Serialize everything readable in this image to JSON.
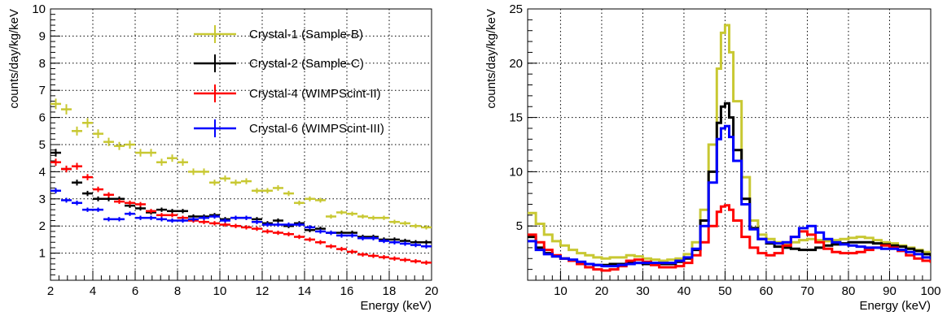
{
  "chart_data": [
    {
      "type": "scatter",
      "xlabel": "Energy (keV)",
      "ylabel": "counts/day/kg/keV",
      "xlim": [
        2,
        20
      ],
      "ylim": [
        0,
        10
      ],
      "xticks": [
        2,
        4,
        6,
        8,
        10,
        12,
        14,
        16,
        18,
        20
      ],
      "yticks": [
        1,
        2,
        3,
        4,
        5,
        6,
        7,
        8,
        9,
        10
      ],
      "grid": true,
      "legend_position": "top-right",
      "bin_width": 0.5,
      "series": [
        {
          "name": "Crystal-1 (Sample-B)",
          "color": "#c8c832",
          "x": [
            2.25,
            2.75,
            3.25,
            3.75,
            4.25,
            4.75,
            5.25,
            5.75,
            6.25,
            6.75,
            7.25,
            7.75,
            8.25,
            8.75,
            9.25,
            9.75,
            10.25,
            10.75,
            11.25,
            11.75,
            12.25,
            12.75,
            13.25,
            13.75,
            14.25,
            14.75,
            15.25,
            15.75,
            16.25,
            16.75,
            17.25,
            17.75,
            18.25,
            18.75,
            19.25,
            19.75
          ],
          "y": [
            6.5,
            6.3,
            5.5,
            5.8,
            5.4,
            5.1,
            4.95,
            5.0,
            4.7,
            4.7,
            4.35,
            4.5,
            4.35,
            4.0,
            4.0,
            3.6,
            3.75,
            3.6,
            3.65,
            3.3,
            3.3,
            3.4,
            3.2,
            2.85,
            3.0,
            2.95,
            2.35,
            2.5,
            2.45,
            2.35,
            2.3,
            2.3,
            2.15,
            2.1,
            2.0,
            1.95
          ]
        },
        {
          "name": "Crystal-2 (Sample-C)",
          "color": "#000000",
          "x": [
            2.25,
            2.75,
            3.25,
            3.75,
            4.25,
            4.75,
            5.25,
            5.75,
            6.25,
            6.75,
            7.25,
            7.75,
            8.25,
            8.75,
            9.25,
            9.75,
            10.25,
            10.75,
            11.25,
            11.75,
            12.25,
            12.75,
            13.25,
            13.75,
            14.25,
            14.75,
            15.25,
            15.75,
            16.25,
            16.75,
            17.25,
            17.75,
            18.25,
            18.75,
            19.25,
            19.75
          ],
          "y": [
            4.7,
            4.1,
            3.6,
            3.2,
            3.0,
            3.0,
            3.0,
            2.75,
            2.65,
            2.5,
            2.6,
            2.55,
            2.55,
            2.35,
            2.35,
            2.4,
            2.25,
            2.3,
            2.3,
            2.25,
            2.1,
            2.2,
            2.0,
            2.1,
            1.85,
            1.9,
            1.75,
            1.75,
            1.75,
            1.6,
            1.6,
            1.5,
            1.5,
            1.45,
            1.4,
            1.4
          ]
        },
        {
          "name": "Crystal-4 (WIMPScint-II)",
          "color": "#ff0000",
          "x": [
            2.25,
            2.75,
            3.25,
            3.75,
            4.25,
            4.75,
            5.25,
            5.75,
            6.25,
            6.75,
            7.25,
            7.75,
            8.25,
            8.75,
            9.25,
            9.75,
            10.25,
            10.75,
            11.25,
            11.75,
            12.25,
            12.75,
            13.25,
            13.75,
            14.25,
            14.75,
            15.25,
            15.75,
            16.25,
            16.75,
            17.25,
            17.75,
            18.25,
            18.75,
            19.25,
            19.75
          ],
          "y": [
            4.35,
            4.1,
            4.2,
            3.8,
            3.35,
            3.15,
            2.9,
            2.85,
            2.8,
            2.55,
            2.4,
            2.4,
            2.3,
            2.2,
            2.15,
            2.1,
            2.05,
            2.0,
            1.95,
            1.9,
            1.8,
            1.75,
            1.7,
            1.6,
            1.5,
            1.4,
            1.25,
            1.15,
            1.05,
            0.95,
            0.9,
            0.85,
            0.8,
            0.75,
            0.7,
            0.65
          ]
        },
        {
          "name": "Crystal-6 (WIMPScint-III)",
          "color": "#0000ff",
          "x": [
            2.25,
            2.75,
            3.25,
            3.75,
            4.25,
            4.75,
            5.25,
            5.75,
            6.25,
            6.75,
            7.25,
            7.75,
            8.25,
            8.75,
            9.25,
            9.75,
            10.25,
            10.75,
            11.25,
            11.75,
            12.25,
            12.75,
            13.25,
            13.75,
            14.25,
            14.75,
            15.25,
            15.75,
            16.25,
            16.75,
            17.25,
            17.75,
            18.25,
            18.75,
            19.25,
            19.75
          ],
          "y": [
            3.3,
            2.95,
            2.85,
            2.6,
            2.6,
            2.25,
            2.25,
            2.45,
            2.3,
            2.3,
            2.25,
            2.2,
            2.2,
            2.25,
            2.3,
            2.35,
            2.2,
            2.3,
            2.3,
            2.15,
            2.05,
            2.05,
            2.05,
            2.05,
            1.95,
            1.8,
            1.75,
            1.65,
            1.65,
            1.55,
            1.55,
            1.45,
            1.4,
            1.35,
            1.3,
            1.25
          ]
        }
      ]
    },
    {
      "type": "line",
      "xlabel": "Energy (keV)",
      "ylabel": "counts/day/kg/keV",
      "xlim": [
        2,
        100
      ],
      "ylim": [
        0,
        25
      ],
      "xticks": [
        10,
        20,
        30,
        40,
        50,
        60,
        70,
        80,
        90,
        100
      ],
      "yticks": [
        5,
        10,
        15,
        20,
        25
      ],
      "grid": true,
      "step": true,
      "series": [
        {
          "color": "#c8c832",
          "x": [
            2,
            4,
            6,
            8,
            10,
            12,
            14,
            16,
            18,
            20,
            22,
            24,
            26,
            28,
            30,
            32,
            34,
            36,
            38,
            40,
            42,
            44,
            46,
            48,
            49,
            50,
            51,
            52,
            54,
            56,
            58,
            60,
            62,
            64,
            66,
            68,
            70,
            72,
            74,
            76,
            78,
            80,
            82,
            84,
            86,
            88,
            90,
            92,
            94,
            96,
            98,
            100
          ],
          "y": [
            6.2,
            5.2,
            4.2,
            3.6,
            3.2,
            2.8,
            2.5,
            2.3,
            2.1,
            2.0,
            2.1,
            2.1,
            2.3,
            2.2,
            2.0,
            1.9,
            1.8,
            1.9,
            2.0,
            2.4,
            3.5,
            6.5,
            12.5,
            19.5,
            22.8,
            23.5,
            21.0,
            16.5,
            9.5,
            5.5,
            4.2,
            3.8,
            3.5,
            3.4,
            3.5,
            3.7,
            3.8,
            3.7,
            3.6,
            3.7,
            3.8,
            3.9,
            4.0,
            3.9,
            3.7,
            3.5,
            3.4,
            3.2,
            3.0,
            2.8,
            2.6,
            2.4
          ]
        },
        {
          "color": "#000000",
          "x": [
            2,
            4,
            6,
            8,
            10,
            12,
            14,
            16,
            18,
            20,
            22,
            24,
            26,
            28,
            30,
            32,
            34,
            36,
            38,
            40,
            42,
            44,
            46,
            48,
            49,
            50,
            51,
            52,
            54,
            56,
            58,
            60,
            62,
            64,
            66,
            68,
            70,
            72,
            74,
            76,
            78,
            80,
            82,
            84,
            86,
            88,
            90,
            92,
            94,
            96,
            98,
            100
          ],
          "y": [
            4.0,
            3.0,
            2.5,
            2.2,
            2.0,
            1.8,
            1.6,
            1.5,
            1.4,
            1.4,
            1.5,
            1.5,
            1.6,
            1.6,
            1.5,
            1.5,
            1.5,
            1.5,
            1.7,
            2.0,
            2.8,
            5.5,
            10.0,
            14.5,
            16.0,
            16.3,
            15.0,
            12.0,
            7.5,
            4.8,
            3.8,
            3.4,
            3.1,
            3.0,
            2.9,
            2.8,
            2.8,
            3.0,
            3.2,
            3.3,
            3.4,
            3.5,
            3.5,
            3.5,
            3.4,
            3.3,
            3.2,
            3.1,
            2.9,
            2.7,
            2.4,
            2.1
          ]
        },
        {
          "color": "#ff0000",
          "x": [
            2,
            4,
            6,
            8,
            10,
            12,
            14,
            16,
            18,
            20,
            22,
            24,
            26,
            28,
            30,
            32,
            34,
            36,
            38,
            40,
            42,
            44,
            46,
            48,
            49,
            50,
            51,
            52,
            54,
            56,
            58,
            60,
            62,
            64,
            66,
            68,
            70,
            72,
            74,
            76,
            78,
            80,
            82,
            84,
            86,
            88,
            90,
            92,
            94,
            96,
            98,
            100
          ],
          "y": [
            4.2,
            3.5,
            2.8,
            2.3,
            2.0,
            1.8,
            1.5,
            1.2,
            1.0,
            0.9,
            1.0,
            1.3,
            1.8,
            1.9,
            1.7,
            1.4,
            1.2,
            1.2,
            1.3,
            1.6,
            2.3,
            3.5,
            5.0,
            6.3,
            6.8,
            6.9,
            6.5,
            5.5,
            4.0,
            3.0,
            2.5,
            2.3,
            2.5,
            3.2,
            4.0,
            4.5,
            4.2,
            3.5,
            2.9,
            2.6,
            2.5,
            2.5,
            2.6,
            2.8,
            3.0,
            3.2,
            3.0,
            2.7,
            2.3,
            2.0,
            1.8,
            1.6
          ]
        },
        {
          "color": "#0000ff",
          "x": [
            2,
            4,
            6,
            8,
            10,
            12,
            14,
            16,
            18,
            20,
            22,
            24,
            26,
            28,
            30,
            32,
            34,
            36,
            38,
            40,
            42,
            44,
            46,
            48,
            49,
            50,
            51,
            52,
            54,
            56,
            58,
            60,
            62,
            64,
            66,
            68,
            70,
            72,
            74,
            76,
            78,
            80,
            82,
            84,
            86,
            88,
            90,
            92,
            94,
            96,
            98,
            100
          ],
          "y": [
            3.6,
            2.8,
            2.4,
            2.2,
            2.0,
            1.9,
            1.7,
            1.5,
            1.4,
            1.3,
            1.3,
            1.4,
            1.5,
            1.6,
            1.6,
            1.6,
            1.6,
            1.6,
            1.8,
            2.1,
            2.9,
            5.0,
            9.0,
            13.0,
            14.0,
            14.2,
            13.2,
            11.0,
            7.0,
            4.7,
            3.8,
            3.5,
            3.4,
            3.5,
            4.0,
            4.8,
            5.0,
            4.4,
            3.8,
            3.5,
            3.3,
            3.2,
            3.1,
            3.0,
            3.0,
            2.9,
            2.9,
            2.8,
            2.6,
            2.4,
            2.1,
            1.9
          ]
        }
      ]
    }
  ]
}
